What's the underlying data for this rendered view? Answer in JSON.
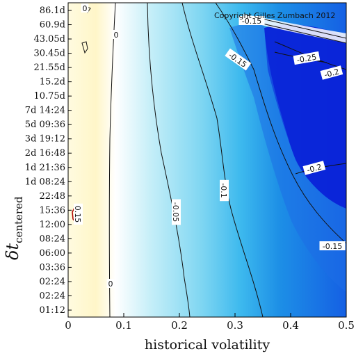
{
  "chart_data": {
    "type": "heatmap",
    "title": "",
    "annotation": "Copyright Gilles Zumbach 2012",
    "xlabel": "historical volatility",
    "ylabel_main": "δt",
    "ylabel_sub": "centered",
    "xlim": [
      0,
      0.5
    ],
    "x_ticks": [
      "0",
      "0.1",
      "0.2",
      "0.3",
      "0.4",
      "0.5"
    ],
    "y_ticks": [
      "86.1d",
      "60.9d",
      "43.05d",
      "30.45d",
      "21.55d",
      "15.2d",
      "10.75d",
      "7d 14:24",
      "5d 09:36",
      "3d 19:12",
      "2d 16:48",
      "1d 21:36",
      "1d 08:24",
      "22:48",
      "15:36",
      "12:00",
      "08:24",
      "06:00",
      "03:36",
      "02:24",
      "02:24",
      "01:12"
    ],
    "colormap": [
      "#fffbe0",
      "#ffffff",
      "#c4eef8",
      "#4fc4ee",
      "#1d8fe6",
      "#0a22d8"
    ],
    "contours": [
      {
        "level": "0",
        "x": [
          0.08,
          0.075,
          0.072,
          0.075,
          0.078,
          0.078
        ],
        "y_index": [
          0,
          4,
          8,
          13,
          18,
          21
        ]
      },
      {
        "level": "-0.05",
        "x": [
          0.14,
          0.14,
          0.17,
          0.2,
          0.21,
          0.225
        ],
        "y_index": [
          0,
          4,
          8,
          13,
          17,
          21
        ]
      },
      {
        "level": "-0.1",
        "x": [
          0.205,
          0.25,
          0.29,
          0.31,
          0.35,
          0.375
        ],
        "y_index": [
          0,
          4,
          8,
          13,
          17,
          21
        ]
      },
      {
        "level": "-0.15",
        "x": [
          0.26,
          0.33,
          0.37,
          0.4,
          0.45,
          0.5
        ],
        "y_index": [
          0,
          3,
          7,
          12,
          17,
          19
        ]
      },
      {
        "level": "-0.2",
        "x": [
          0.42,
          0.46,
          0.48,
          0.5
        ],
        "y_index": [
          3,
          6,
          11,
          13
        ]
      },
      {
        "level": "-0.25",
        "x": [
          0.38,
          0.42,
          0.45
        ],
        "y_index": [
          2,
          2,
          2
        ]
      }
    ],
    "contour_labels": [
      "0",
      "0",
      "0",
      "-0.05",
      "-0.1",
      "-0.15",
      "-0.15",
      "-0.15",
      "-0.2",
      "-0.2",
      "-0.25",
      "0.15"
    ]
  }
}
